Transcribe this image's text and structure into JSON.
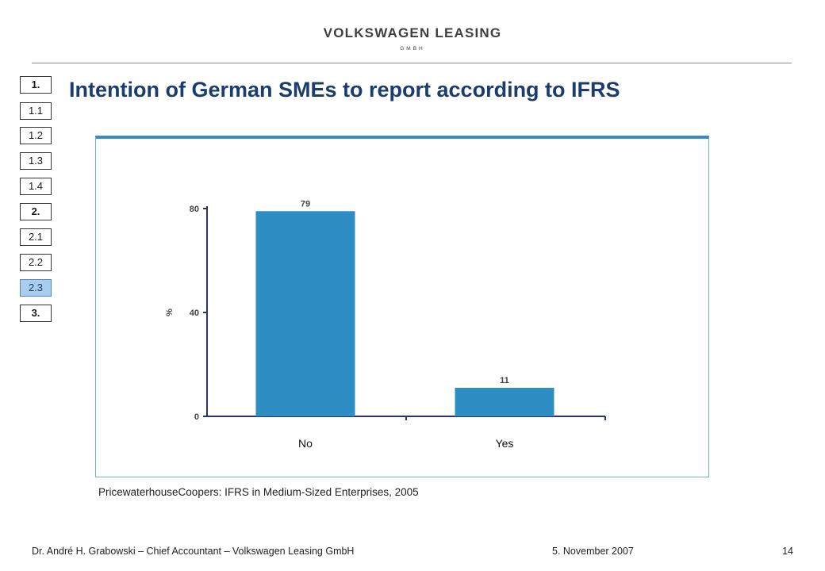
{
  "brand": {
    "name": "VOLKSWAGEN LEASING",
    "sub": "GMBH"
  },
  "nav": {
    "items": [
      {
        "label": "1.",
        "section": true,
        "active": false
      },
      {
        "label": "1.1",
        "section": false,
        "active": false
      },
      {
        "label": "1.2",
        "section": false,
        "active": false
      },
      {
        "label": "1.3",
        "section": false,
        "active": false
      },
      {
        "label": "1.4",
        "section": false,
        "active": false
      },
      {
        "label": "2.",
        "section": true,
        "active": false
      },
      {
        "label": "2.1",
        "section": false,
        "active": false
      },
      {
        "label": "2.2",
        "section": false,
        "active": false
      },
      {
        "label": "2.3",
        "section": false,
        "active": true
      },
      {
        "label": "3.",
        "section": true,
        "active": false
      }
    ]
  },
  "title": "Intention of German SMEs to report according to IFRS",
  "chart_data": {
    "type": "bar",
    "categories": [
      "No",
      "Yes"
    ],
    "values": [
      79,
      11
    ],
    "ylabel": "%",
    "yticks": [
      0,
      40,
      80
    ],
    "ylim": [
      0,
      80
    ],
    "bar_color": "#2e8ec4",
    "axis_color": "#2a3566",
    "frame_color": "#3a8cc8",
    "grid": false
  },
  "source": "PricewaterhouseCoopers: IFRS in Medium-Sized Enterprises, 2005",
  "footer": {
    "author": "Dr. André H. Grabowski – Chief Accountant – Volkswagen Leasing GmbH",
    "date": "5. November 2007",
    "page": "14"
  }
}
